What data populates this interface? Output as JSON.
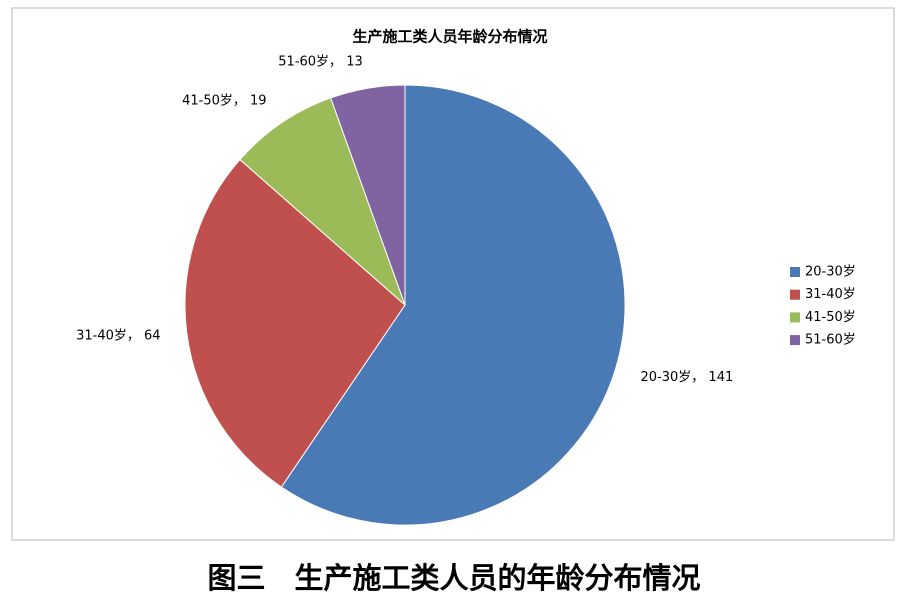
{
  "chart_data": {
    "type": "pie",
    "title": "生产施工类人员年龄分布情况",
    "categories": [
      "20-30岁",
      "31-40岁",
      "41-50岁",
      "51-60岁"
    ],
    "values": [
      141,
      64,
      19,
      13
    ],
    "value_labels": [
      "20-30岁， 141",
      "31-40岁， 64",
      "41-50岁， 19",
      "51-60岁， 13"
    ],
    "colors": [
      "#4a7ab5",
      "#c0504d",
      "#9bbb59",
      "#8064a2"
    ],
    "legend": "right"
  },
  "caption": "图三　生产施工类人员的年龄分布情况"
}
